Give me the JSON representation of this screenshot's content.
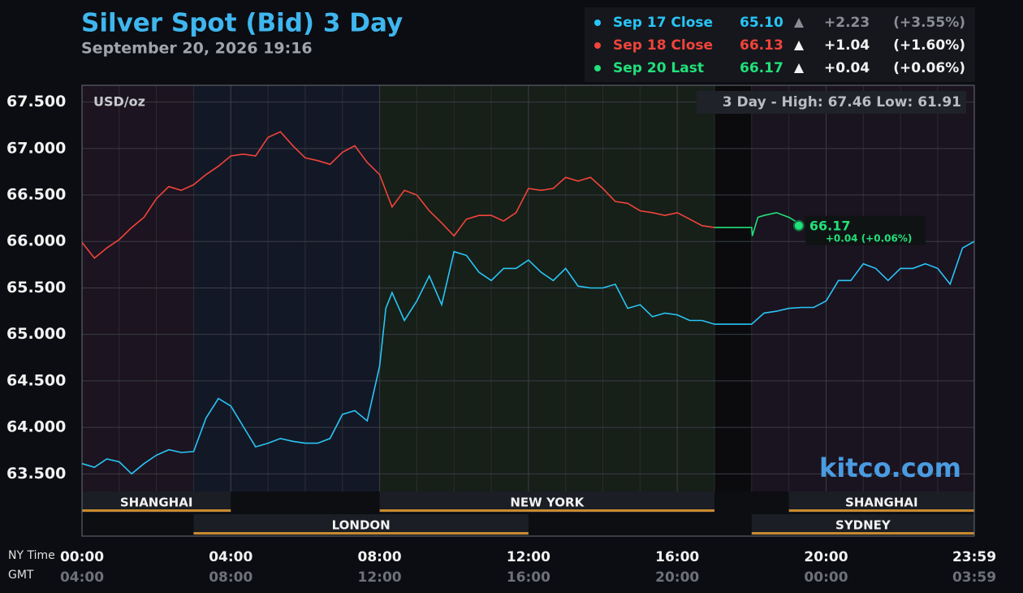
{
  "chart_data": {
    "type": "line",
    "title": "Silver Spot (Bid) 3 Day",
    "subtitle": "September 20, 2026 19:16",
    "y_label": "USD/oz",
    "high_low": "3 Day - High: 67.46  Low: 61.91",
    "watermark": "kitco.com",
    "x_label": "NY Time",
    "x2_label": "GMT",
    "xlim": [
      0,
      1439
    ],
    "xticks": [
      {
        "value": 0,
        "label": "00:00"
      },
      {
        "value": 240,
        "label": "04:00"
      },
      {
        "value": 480,
        "label": "08:00"
      },
      {
        "value": 720,
        "label": "12:00"
      },
      {
        "value": 960,
        "label": "16:00"
      },
      {
        "value": 1200,
        "label": "20:00"
      },
      {
        "value": 1439,
        "label": "23:59"
      }
    ],
    "gmt_ticks": [
      {
        "value": 0,
        "label": "04:00"
      },
      {
        "value": 240,
        "label": "08:00"
      },
      {
        "value": 480,
        "label": "12:00"
      },
      {
        "value": 720,
        "label": "16:00"
      },
      {
        "value": 960,
        "label": "20:00"
      },
      {
        "value": 1200,
        "label": "00:00"
      },
      {
        "value": 1439,
        "label": "03:59"
      }
    ],
    "ylim": [
      62.83,
      67.68
    ],
    "yticks": [
      {
        "value": 63.5,
        "label": "63.500"
      },
      {
        "value": 64,
        "label": "64.000"
      },
      {
        "value": 64.5,
        "label": "64.500"
      },
      {
        "value": 65,
        "label": "65.000"
      },
      {
        "value": 65.5,
        "label": "65.500"
      },
      {
        "value": 66,
        "label": "66.000"
      },
      {
        "value": 66.5,
        "label": "66.500"
      },
      {
        "value": 67,
        "label": "67.000"
      },
      {
        "value": 67.5,
        "label": "67.500"
      }
    ],
    "grid": true,
    "sessions": [
      "SHANGHAI",
      "LONDON",
      "NEW YORK",
      "SHANGHAI",
      "SYDNEY"
    ],
    "last_change": "+0.04 (+0.06%)",
    "series": [
      {
        "name": "Sep 17 Close",
        "color": "#29c5f6",
        "close": {
          "value": 65.1,
          "label": "65.10"
        },
        "change": {
          "value": 2.23,
          "label": "+2.23"
        },
        "pct": {
          "value": 3.55,
          "label": "(+3.55%)"
        },
        "x": [
          0,
          20,
          40,
          60,
          80,
          100,
          120,
          140,
          160,
          180,
          200,
          220,
          240,
          260,
          280,
          300,
          320,
          340,
          360,
          380,
          400,
          420,
          440,
          460,
          480,
          490,
          500,
          520,
          540,
          560,
          580,
          600,
          620,
          640,
          660,
          680,
          700,
          720,
          740,
          760,
          780,
          800,
          820,
          840,
          860,
          880,
          900,
          920,
          940,
          960,
          980,
          1000,
          1020,
          1080,
          1100,
          1120,
          1140,
          1160,
          1180,
          1200,
          1220,
          1240,
          1260,
          1280,
          1300,
          1320,
          1340,
          1360,
          1380,
          1400,
          1420,
          1439
        ],
        "values": [
          63.61,
          63.57,
          63.66,
          63.63,
          63.5,
          63.61,
          63.7,
          63.76,
          63.73,
          63.74,
          64.1,
          64.31,
          64.23,
          64.01,
          63.79,
          63.83,
          63.88,
          63.85,
          63.83,
          63.83,
          63.88,
          64.14,
          64.18,
          64.07,
          64.66,
          65.28,
          65.45,
          65.15,
          65.36,
          65.63,
          65.32,
          65.89,
          65.85,
          65.67,
          65.58,
          65.71,
          65.71,
          65.8,
          65.67,
          65.58,
          65.71,
          65.52,
          65.5,
          65.5,
          65.54,
          65.28,
          65.32,
          65.19,
          65.23,
          65.21,
          65.15,
          65.15,
          65.11,
          65.11,
          65.23,
          65.25,
          65.28,
          65.29,
          65.29,
          65.36,
          65.58,
          65.58,
          65.76,
          65.71,
          65.58,
          65.71,
          65.71,
          65.76,
          65.71,
          65.54,
          65.93,
          66.0
        ]
      },
      {
        "name": "Sep 18 Close",
        "color": "#f0443a",
        "close": {
          "value": 66.13,
          "label": "66.13"
        },
        "change": {
          "value": 1.04,
          "label": "+1.04"
        },
        "pct": {
          "value": 1.6,
          "label": "(+1.60%)"
        },
        "x": [
          0,
          20,
          40,
          60,
          80,
          100,
          120,
          140,
          160,
          180,
          200,
          220,
          240,
          260,
          280,
          300,
          320,
          340,
          360,
          380,
          400,
          420,
          440,
          460,
          480,
          500,
          520,
          540,
          560,
          580,
          600,
          620,
          640,
          660,
          680,
          700,
          720,
          740,
          760,
          780,
          800,
          820,
          840,
          860,
          880,
          900,
          920,
          940,
          960,
          980,
          1000,
          1020
        ],
        "values": [
          65.99,
          65.82,
          65.93,
          66.02,
          66.15,
          66.26,
          66.46,
          66.59,
          66.55,
          66.61,
          66.72,
          66.81,
          66.92,
          66.94,
          66.92,
          67.12,
          67.18,
          67.03,
          66.9,
          66.87,
          66.83,
          66.96,
          67.03,
          66.85,
          66.72,
          66.37,
          66.55,
          66.5,
          66.33,
          66.2,
          66.06,
          66.24,
          66.28,
          66.28,
          66.22,
          66.31,
          66.57,
          66.55,
          66.57,
          66.69,
          66.65,
          66.69,
          66.57,
          66.43,
          66.41,
          66.33,
          66.31,
          66.28,
          66.31,
          66.24,
          66.17,
          66.15
        ]
      },
      {
        "name": "Sep 20 Last",
        "color": "#22e07a",
        "close": {
          "value": 66.17,
          "label": "66.17"
        },
        "change": {
          "value": 0.04,
          "label": "+0.04"
        },
        "pct": {
          "value": 0.06,
          "label": "(+0.06%)"
        },
        "x": [
          1020,
          1080,
          1081,
          1090,
          1100,
          1120,
          1140,
          1150,
          1156
        ],
        "values": [
          66.15,
          66.15,
          66.06,
          66.26,
          66.28,
          66.31,
          66.26,
          66.22,
          66.17
        ]
      }
    ]
  }
}
